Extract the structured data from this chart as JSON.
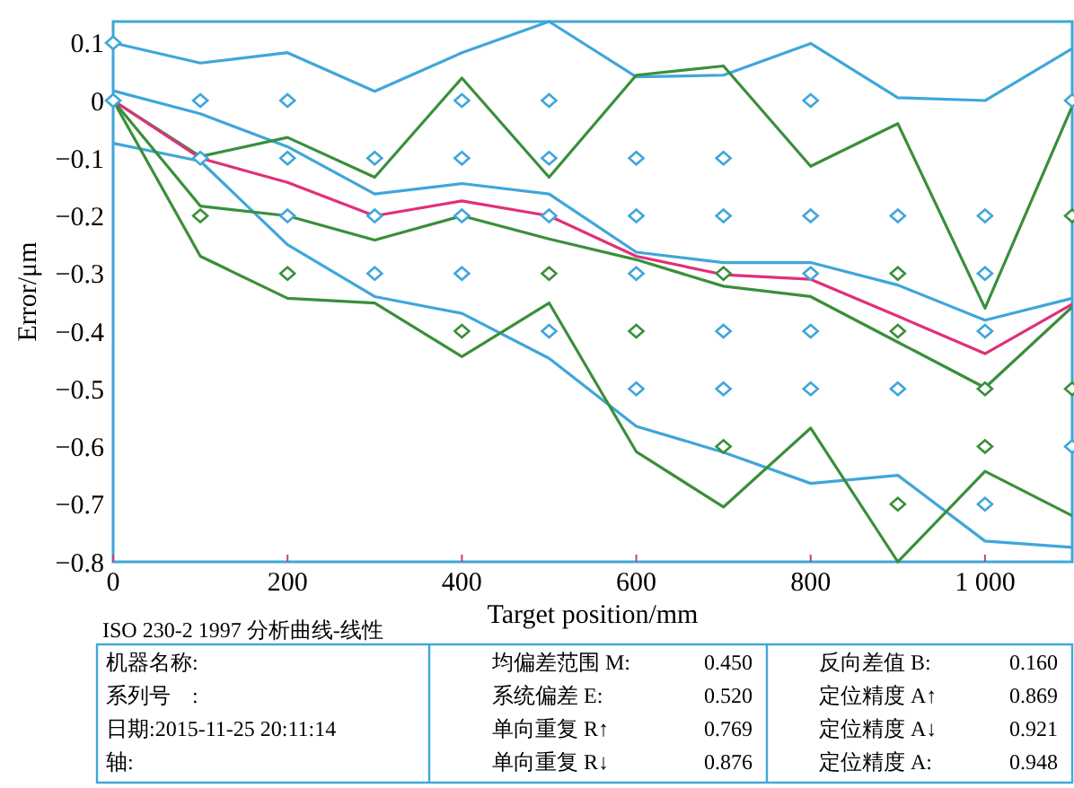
{
  "chart_data": {
    "type": "line",
    "xlabel": "Target position/mm",
    "ylabel": "Error/μm",
    "x": [
      0,
      100,
      200,
      300,
      400,
      500,
      600,
      700,
      800,
      900,
      1000,
      1100
    ],
    "xlim": [
      0,
      1100
    ],
    "ylim": [
      -0.8,
      0.137
    ],
    "xticks": [
      0,
      200,
      400,
      600,
      800,
      {
        "value": 1000,
        "label": "1 000"
      }
    ],
    "yticks": [
      {
        "value": 0.1,
        "label": "0.1"
      },
      {
        "value": 0,
        "label": "0"
      },
      {
        "value": -0.1,
        "label": "−0.1"
      },
      {
        "value": -0.2,
        "label": "−0.2"
      },
      {
        "value": -0.3,
        "label": "−0.3"
      },
      {
        "value": -0.4,
        "label": "−0.4"
      },
      {
        "value": -0.5,
        "label": "−0.5"
      },
      {
        "value": -0.6,
        "label": "−0.6"
      },
      {
        "value": -0.7,
        "label": "−0.7"
      },
      {
        "value": -0.8,
        "label": "−0.8"
      }
    ],
    "grid": false,
    "marker": "none",
    "line_style": "solid",
    "series": [
      {
        "color": "#3fa6da",
        "values": [
          0.1,
          0.065,
          0.083,
          0.016,
          0.083,
          0.137,
          0.041,
          0.044,
          0.099,
          0.005,
          0,
          0.09
        ]
      },
      {
        "color": "#3fa6da",
        "values": [
          0.017,
          -0.023,
          -0.08,
          -0.162,
          -0.144,
          -0.162,
          -0.263,
          -0.281,
          -0.281,
          -0.32,
          -0.381,
          -0.343
        ]
      },
      {
        "color": "#3fa6da",
        "values": [
          -0.074,
          -0.105,
          -0.25,
          -0.34,
          -0.369,
          -0.447,
          -0.565,
          -0.61,
          -0.664,
          -0.65,
          -0.764,
          -0.775
        ]
      },
      {
        "color": "#3a8f3a",
        "values": [
          0,
          -0.097,
          -0.064,
          -0.133,
          0.039,
          -0.133,
          0.044,
          0.06,
          -0.114,
          -0.04,
          -0.36,
          -0.01
        ]
      },
      {
        "color": "#3a8f3a",
        "values": [
          0,
          -0.183,
          -0.2,
          -0.242,
          -0.2,
          -0.24,
          -0.276,
          -0.322,
          -0.34,
          -0.419,
          -0.498,
          -0.358
        ]
      },
      {
        "color": "#3a8f3a",
        "values": [
          0,
          -0.27,
          -0.343,
          -0.351,
          -0.444,
          -0.351,
          -0.609,
          -0.705,
          -0.568,
          -0.8,
          -0.643,
          -0.72
        ]
      },
      {
        "color": "#e0307a",
        "values": [
          0,
          -0.1,
          -0.142,
          -0.2,
          -0.174,
          -0.2,
          -0.27,
          -0.302,
          -0.31,
          -0.374,
          -0.439,
          -0.353
        ]
      },
      {
        "type": "scatter",
        "marker": "diamond",
        "color": "#3fa6da",
        "x": [
          0,
          0,
          100,
          100,
          200,
          200,
          200,
          300,
          300,
          300,
          400,
          400,
          400,
          400,
          500,
          500,
          500,
          500,
          600,
          600,
          600,
          600,
          700,
          700,
          700,
          700,
          800,
          800,
          800,
          800,
          800,
          900,
          900,
          1000,
          1000,
          1000,
          1000,
          1100,
          1100
        ],
        "values": [
          0.1,
          0,
          0,
          -0.1,
          0,
          -0.1,
          -0.2,
          -0.1,
          -0.2,
          -0.3,
          0,
          -0.1,
          -0.2,
          -0.3,
          0,
          -0.1,
          -0.2,
          -0.4,
          -0.1,
          -0.2,
          -0.3,
          -0.5,
          -0.1,
          -0.2,
          -0.4,
          -0.5,
          0,
          -0.2,
          -0.3,
          -0.4,
          -0.5,
          -0.2,
          -0.5,
          -0.2,
          -0.3,
          -0.4,
          -0.7,
          0,
          -0.6
        ]
      },
      {
        "type": "scatter",
        "marker": "diamond",
        "color": "#3a8f3a",
        "x": [
          100,
          200,
          400,
          500,
          600,
          700,
          700,
          900,
          900,
          900,
          1000,
          1000,
          1100,
          1100
        ],
        "values": [
          -0.2,
          -0.3,
          -0.4,
          -0.3,
          -0.4,
          -0.3,
          -0.6,
          -0.3,
          -0.4,
          -0.7,
          -0.5,
          -0.6,
          -0.2,
          -0.5
        ]
      }
    ],
    "annotations": [
      "ISO 230-2 1997  分析曲线-线性",
      "机器名称:",
      "系列号　:",
      "日期:2015-11-25 20:11:14",
      "轴:",
      "均偏差范围 M:",
      "系统偏差 E:",
      "单向重复 R↑",
      "单向重复 R↓",
      "0.450",
      "0.520",
      "0.769",
      "0.876",
      "反向差值 B:",
      "定位精度 A↑",
      "定位精度 A↓",
      "定位精度 A:",
      "0.160",
      "0.869",
      "0.921",
      "0.948"
    ]
  }
}
